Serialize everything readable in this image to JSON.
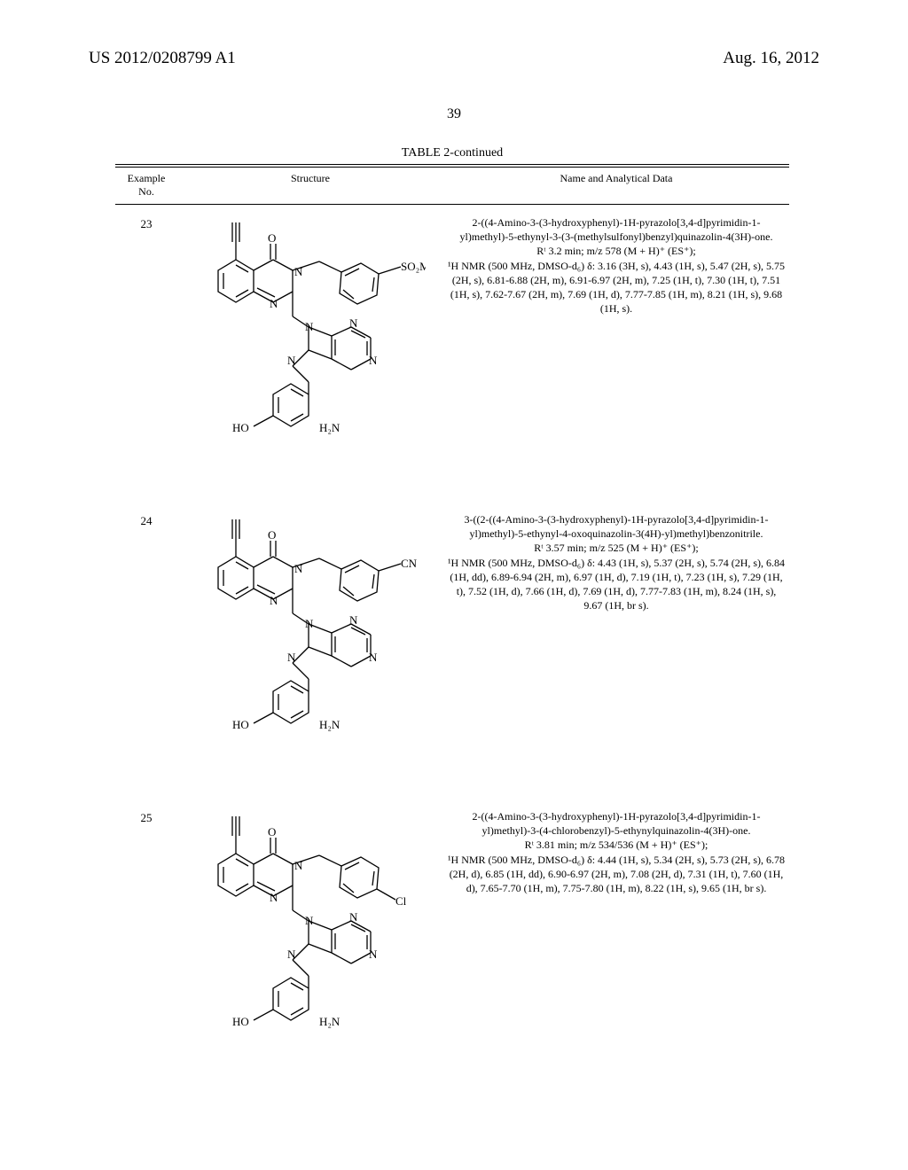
{
  "header": {
    "left": "US 2012/0208799 A1",
    "right": "Aug. 16, 2012",
    "page_number": "39"
  },
  "table": {
    "title": "TABLE 2-continued",
    "columns": {
      "example_no": "Example\nNo.",
      "structure": "Structure",
      "name_data": "Name and Analytical Data"
    },
    "rows": [
      {
        "no": "23",
        "substituent": "SO₂Me",
        "name": "2-((4-Amino-3-(3-hydroxyphenyl)-1H-pyrazolo[3,4-d]pyrimidin-1-yl)methyl)-5-ethynyl-3-(3-(methylsulfonyl)benzyl)quinazolin-4(3H)-one.",
        "analytical": "Rᵗ 3.2 min; m/z 578 (M + H)⁺ (ES⁺);\n¹H NMR (500 MHz, DMSO-d₆) δ: 3.16 (3H, s), 4.43 (1H, s), 5.47 (2H, s), 5.75 (2H, s), 6.81-6.88 (2H, m), 6.91-6.97 (2H, m), 7.25 (1H, t), 7.30 (1H, t), 7.51 (1H, s), 7.62-7.67 (2H, m), 7.69 (1H, d), 7.77-7.85 (1H, m), 8.21 (1H, s), 9.68 (1H, s)."
      },
      {
        "no": "24",
        "substituent": "CN",
        "name": "3-((2-((4-Amino-3-(3-hydroxyphenyl)-1H-pyrazolo[3,4-d]pyrimidin-1-yl)methyl)-5-ethynyl-4-oxoquinazolin-3(4H)-yl)methyl)benzonitrile.",
        "analytical": "Rᵗ 3.57 min; m/z 525 (M + H)⁺ (ES⁺);\n¹H NMR (500 MHz, DMSO-d₆) δ: 4.43 (1H, s), 5.37 (2H, s), 5.74 (2H, s), 6.84 (1H, dd), 6.89-6.94 (2H, m), 6.97 (1H, d), 7.19 (1H, t), 7.23 (1H, s), 7.29 (1H, t), 7.52 (1H, d), 7.66 (1H, d), 7.69 (1H, d), 7.77-7.83 (1H, m), 8.24 (1H, s), 9.67 (1H, br s)."
      },
      {
        "no": "25",
        "substituent": "Cl",
        "name": "2-((4-Amino-3-(3-hydroxyphenyl)-1H-pyrazolo[3,4-d]pyrimidin-1-yl)methyl)-3-(4-chlorobenzyl)-5-ethynylquinazolin-4(3H)-one.",
        "analytical": "Rᵗ 3.81 min; m/z 534/536 (M + H)⁺ (ES⁺);\n¹H NMR (500 MHz, DMSO-d₆) δ: 4.44 (1H, s), 5.34 (2H, s), 5.73 (2H, s), 6.78 (2H, d), 6.85 (1H, dd), 6.90-6.97 (2H, m), 7.08 (2H, d), 7.31 (1H, t), 7.60 (1H, d), 7.65-7.70 (1H, m), 7.75-7.80 (1H, m), 8.22 (1H, s), 9.65 (1H, br s)."
      }
    ]
  }
}
